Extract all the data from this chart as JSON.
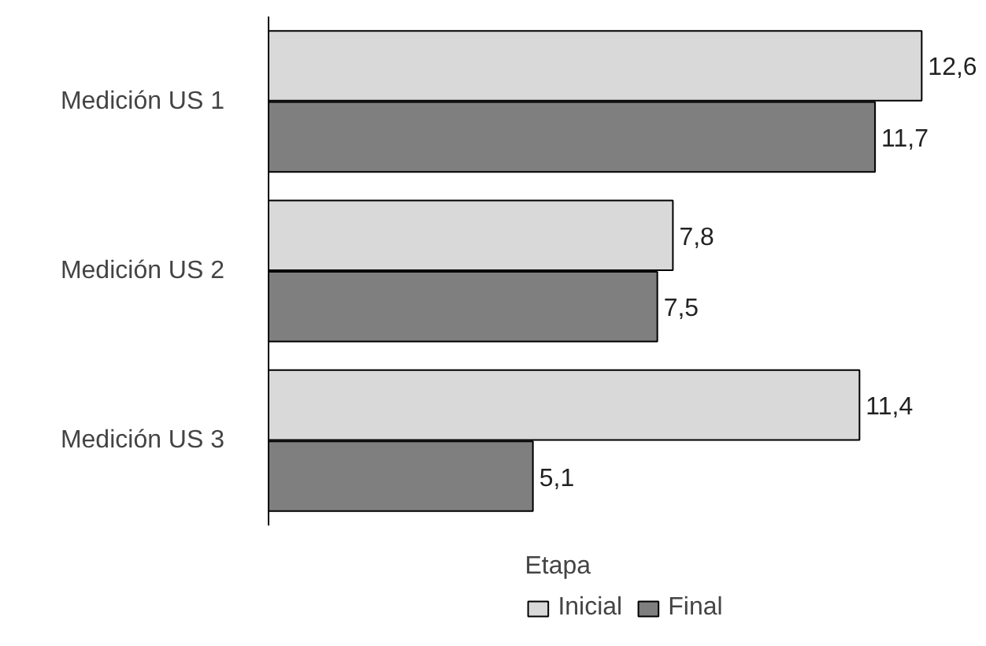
{
  "chart_data": {
    "type": "bar",
    "orientation": "horizontal",
    "categories": [
      "Medición US 1",
      "Medición US 2",
      "Medición US 3"
    ],
    "legend_title": "Etapa",
    "legend": "bottom",
    "series": [
      {
        "name": "Inicial",
        "color": "#d9d9d9",
        "values": [
          12.6,
          7.8,
          11.4
        ],
        "value_labels": [
          "12,6",
          "7,8",
          "11,4"
        ]
      },
      {
        "name": "Final",
        "color": "#7f7f7f",
        "values": [
          11.7,
          7.5,
          5.1
        ],
        "value_labels": [
          "11,7",
          "7,5",
          "5,1"
        ]
      }
    ]
  }
}
